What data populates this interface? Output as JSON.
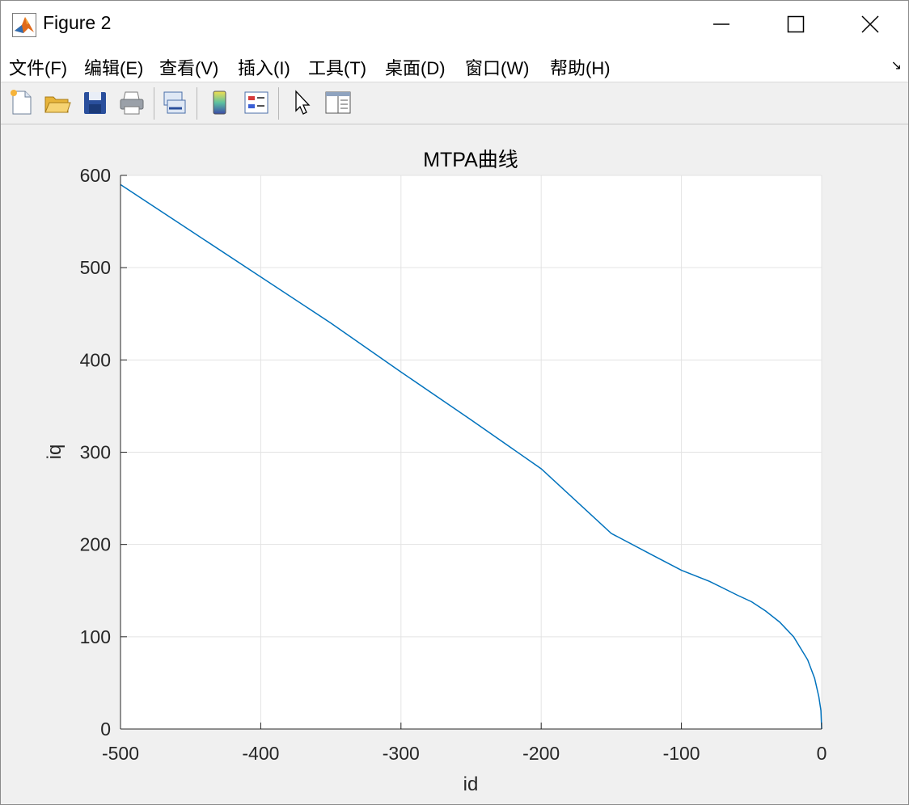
{
  "window": {
    "title": "Figure 2"
  },
  "menu": {
    "items": [
      {
        "label": "文件(F)"
      },
      {
        "label": "编辑(E)"
      },
      {
        "label": "查看(V)"
      },
      {
        "label": "插入(I)"
      },
      {
        "label": "工具(T)"
      },
      {
        "label": "桌面(D)"
      },
      {
        "label": "窗口(W)"
      },
      {
        "label": "帮助(H)"
      }
    ],
    "dock_glyph": "↘"
  },
  "toolbar": {
    "icons": [
      "new-figure-icon",
      "open-file-icon",
      "save-icon",
      "print-icon",
      "link-plot-icon",
      "insert-colorbar-icon",
      "insert-legend-icon",
      "edit-plot-arrow-icon",
      "property-inspector-icon"
    ]
  },
  "colors": {
    "line": "#0072bd",
    "grid": "#e3e3e3",
    "axis": "#262626"
  },
  "chart_data": {
    "type": "line",
    "title": "MTPA曲线",
    "xlabel": "id",
    "ylabel": "iq",
    "xlim": [
      -500,
      0
    ],
    "ylim": [
      0,
      600
    ],
    "xticks": [
      "-500",
      "-400",
      "-300",
      "-200",
      "-100",
      "0"
    ],
    "yticks": [
      "0",
      "100",
      "200",
      "300",
      "400",
      "500",
      "600"
    ],
    "grid": true,
    "series": [
      {
        "x": [
          0,
          -0.5,
          -2,
          -5,
          -10,
          -20,
          -30,
          -40,
          -50,
          -60,
          -80,
          -100,
          -120,
          -150,
          -200,
          -250,
          -300,
          -350,
          -400,
          -450,
          -500
        ],
        "y": [
          0,
          20,
          35,
          55,
          75,
          100,
          116,
          128,
          138,
          145,
          160,
          172,
          188,
          212,
          282,
          335,
          387,
          440,
          490,
          540,
          590
        ]
      }
    ]
  }
}
